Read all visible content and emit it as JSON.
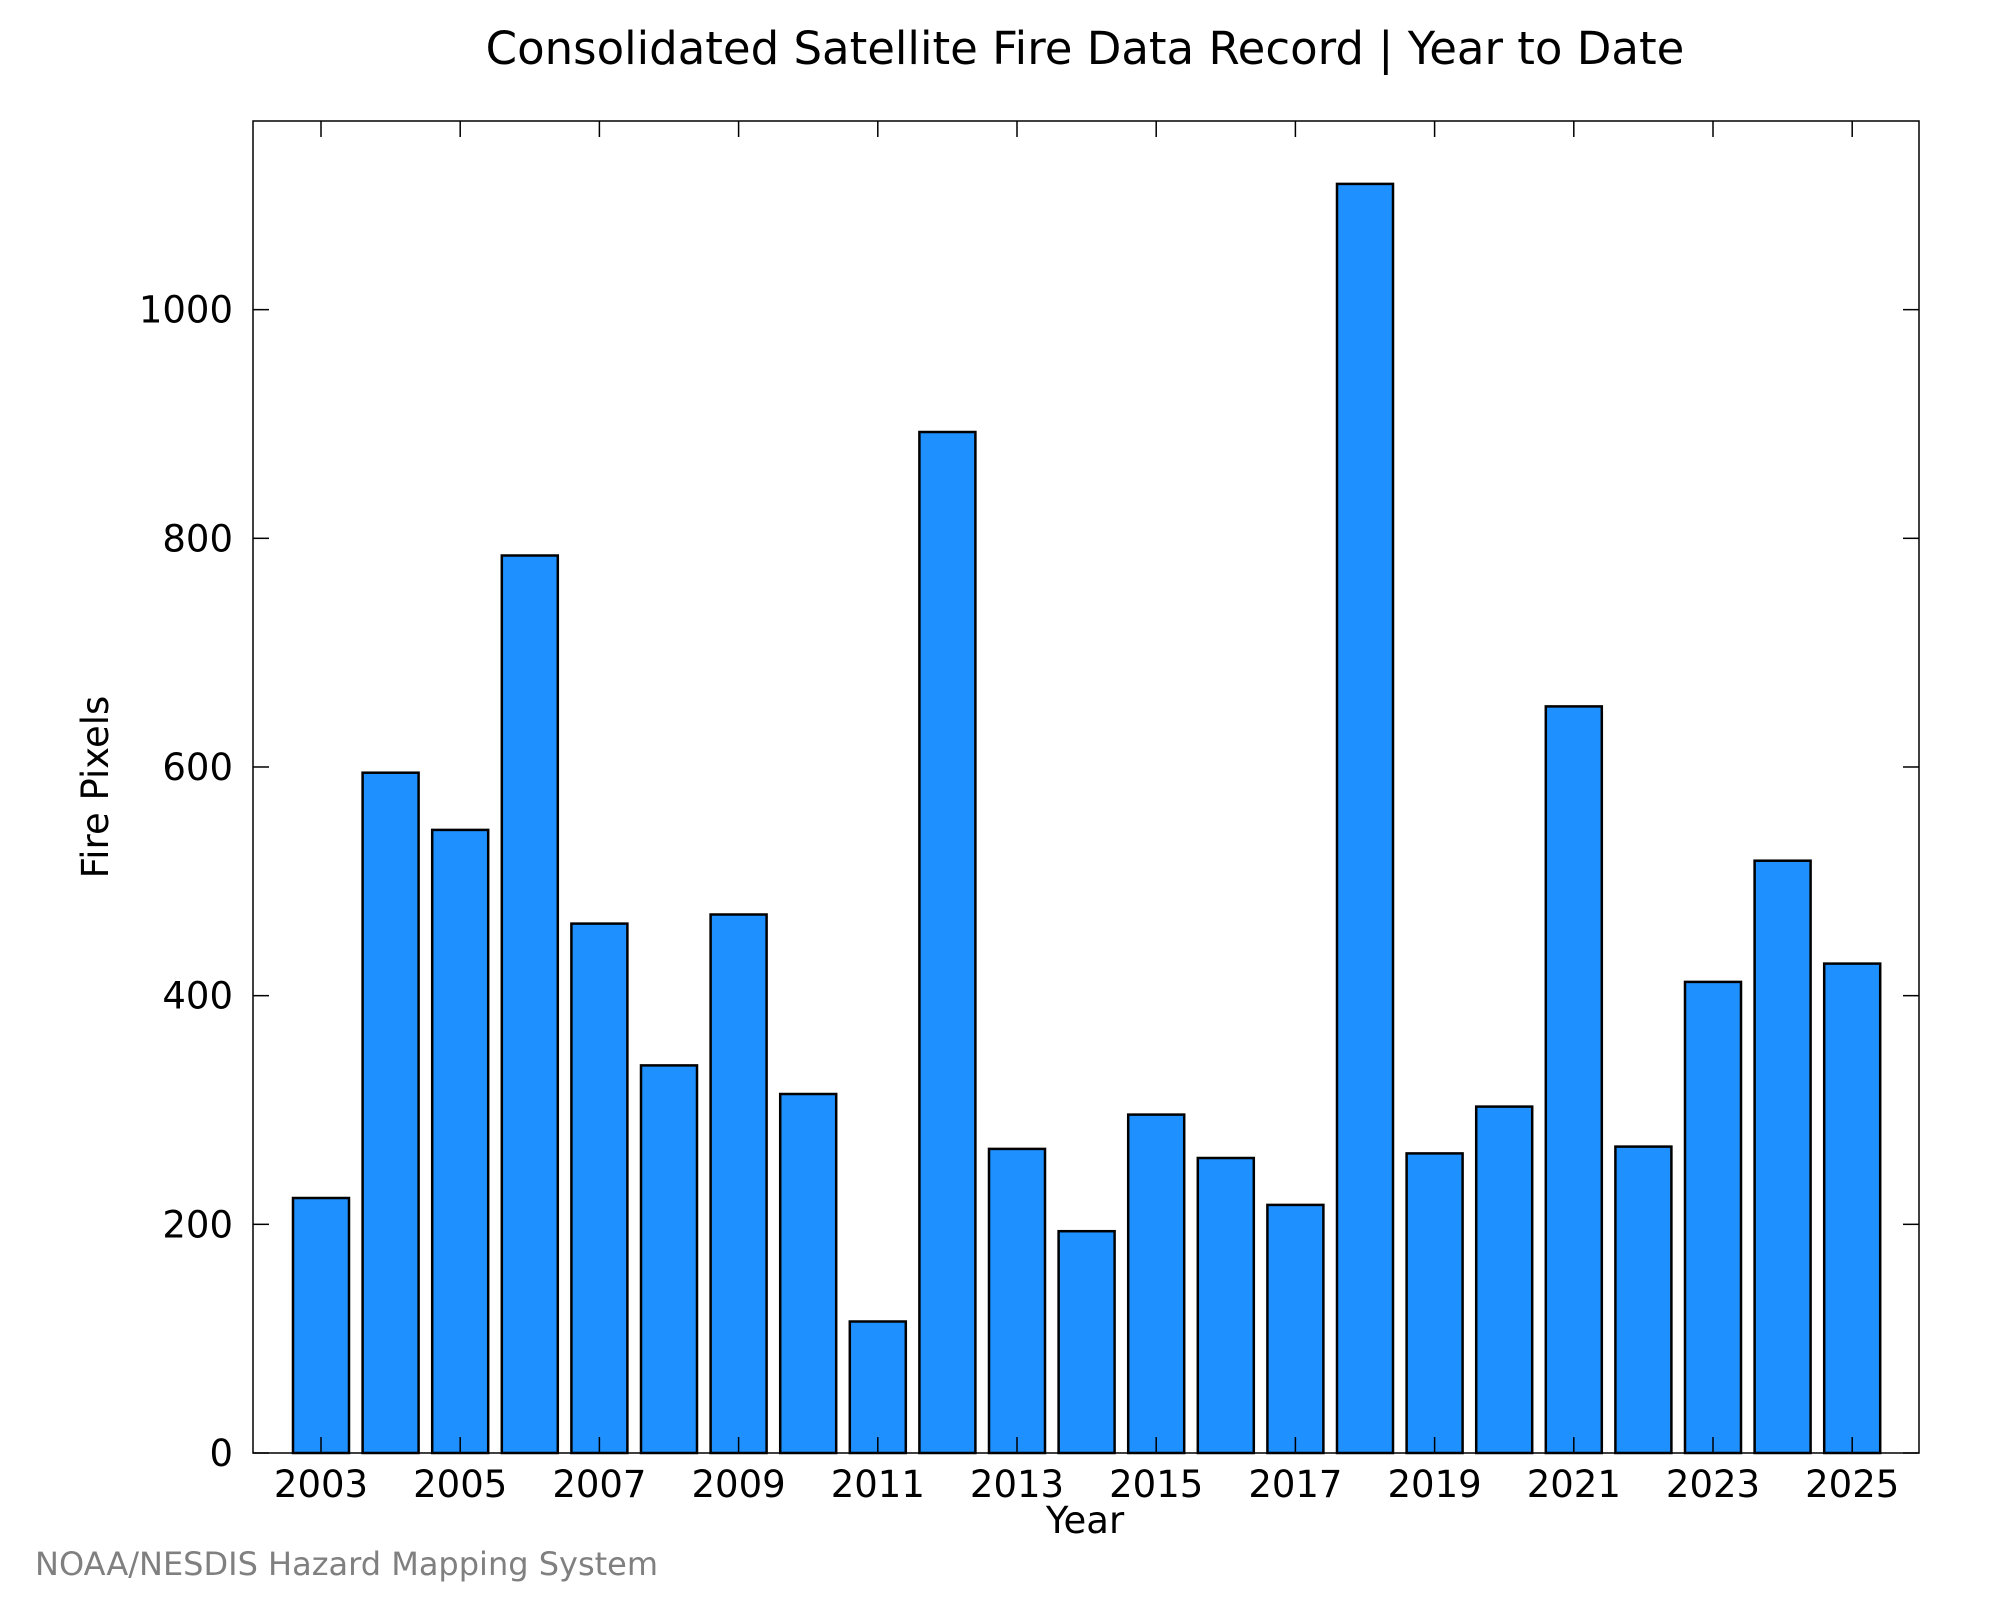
{
  "chart_data": {
    "type": "bar",
    "title": "Consolidated Satellite Fire Data Record | Year to Date",
    "xlabel": "Year",
    "ylabel": "Fire Pixels",
    "categories": [
      2003,
      2004,
      2005,
      2006,
      2007,
      2008,
      2009,
      2010,
      2011,
      2012,
      2013,
      2014,
      2015,
      2016,
      2017,
      2018,
      2019,
      2020,
      2021,
      2022,
      2023,
      2024,
      2025
    ],
    "values": [
      223,
      595,
      545,
      785,
      463,
      339,
      471,
      314,
      115,
      893,
      266,
      194,
      296,
      258,
      217,
      1110,
      262,
      303,
      653,
      268,
      412,
      518,
      428
    ],
    "x_tick_labels": [
      "2003",
      "2005",
      "2007",
      "2009",
      "2011",
      "2013",
      "2015",
      "2017",
      "2019",
      "2021",
      "2023",
      "2025"
    ],
    "y_ticks": [
      0,
      200,
      400,
      600,
      800,
      1000
    ],
    "ylim": [
      0,
      1165
    ],
    "grid": false,
    "bar_color": "#1e90ff",
    "edge_color": "#000000"
  },
  "footer": {
    "credit": "NOAA/NESDIS Hazard Mapping System"
  }
}
